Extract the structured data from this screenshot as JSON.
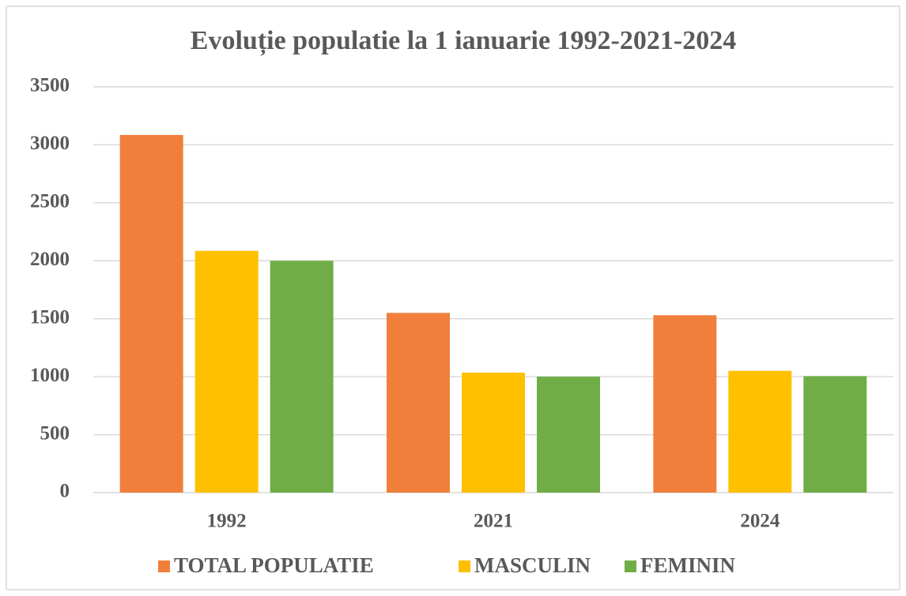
{
  "chart_data": {
    "type": "bar",
    "title": "Evoluție populatie la 1 ianuarie 1992-2021-2024",
    "categories": [
      "1992",
      "2021",
      "2024"
    ],
    "series": [
      {
        "name": "TOTAL POPULATIE",
        "color": "#f07f3c",
        "values": [
          3085,
          1550,
          1530
        ]
      },
      {
        "name": "MASCULIN",
        "color": "#ffc000",
        "values": [
          2085,
          1035,
          1050
        ]
      },
      {
        "name": "FEMININ",
        "color": "#70ad47",
        "values": [
          2000,
          1000,
          1005
        ]
      }
    ],
    "ylim": [
      0,
      3500
    ],
    "yticks": [
      0,
      500,
      1000,
      1500,
      2000,
      2500,
      3000,
      3500
    ],
    "grid": true,
    "legend": "bottom"
  }
}
